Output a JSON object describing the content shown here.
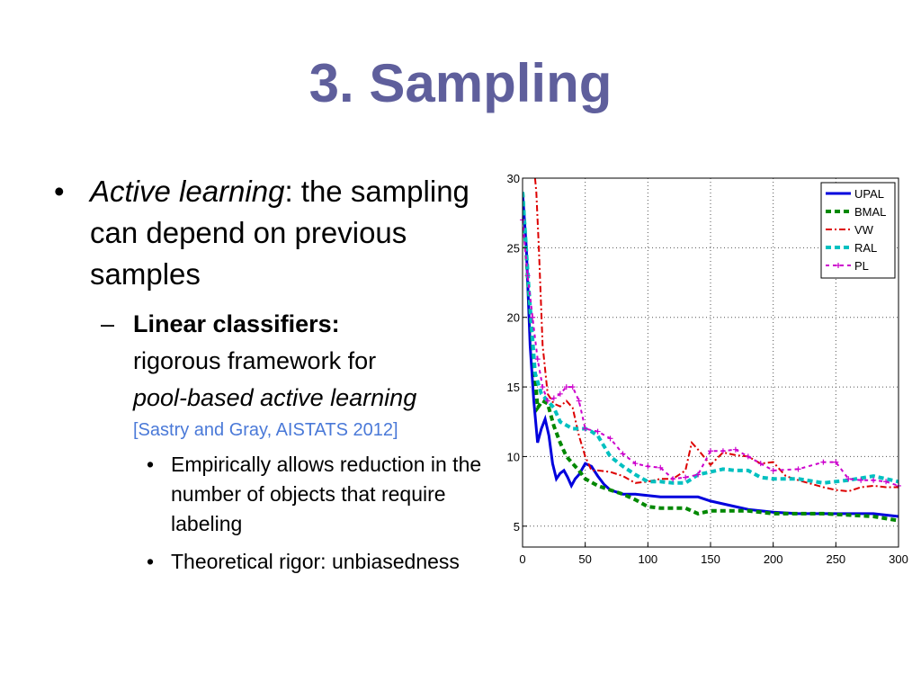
{
  "slide": {
    "title": "3. Sampling",
    "bullet1": {
      "mark": "•",
      "italic": "Active learning",
      "rest": ": the sampling can depend on previous samples"
    },
    "bullet2": {
      "mark": "–",
      "bold": "Linear classifiers:",
      "text1": "rigorous framework for",
      "italic": "pool-based active learning",
      "citation": "[Sastry and Gray, AISTATS 2012]"
    },
    "bullet3a": {
      "mark": "•",
      "text": "Empirically allows reduction in the number of objects that require labeling"
    },
    "bullet3b": {
      "mark": "•",
      "text": "Theoretical rigor: unbiasedness"
    }
  },
  "chart_data": {
    "type": "line",
    "title": "",
    "xlabel": "",
    "ylabel": "",
    "xlim": [
      0,
      300
    ],
    "ylim": [
      3.5,
      30
    ],
    "xticks": [
      0,
      50,
      100,
      150,
      200,
      250,
      300
    ],
    "yticks": [
      5,
      10,
      15,
      20,
      25,
      30
    ],
    "grid": true,
    "legend_position": "top-right",
    "series": [
      {
        "name": "UPAL",
        "color": "#0000dd",
        "style": "solid",
        "x": [
          0,
          3,
          6,
          9,
          12,
          15,
          18,
          21,
          24,
          27,
          30,
          33,
          36,
          39,
          42,
          45,
          50,
          55,
          60,
          65,
          70,
          80,
          90,
          100,
          110,
          120,
          130,
          140,
          150,
          160,
          170,
          180,
          190,
          200,
          220,
          240,
          260,
          280,
          300
        ],
        "y": [
          29,
          25,
          18,
          14,
          11,
          12,
          12.7,
          11.5,
          9.5,
          8.4,
          8.8,
          9,
          8.5,
          7.9,
          8.4,
          8.7,
          9.5,
          9.3,
          8.6,
          8,
          7.6,
          7.3,
          7.3,
          7.2,
          7.1,
          7.1,
          7.1,
          7.1,
          6.8,
          6.6,
          6.4,
          6.2,
          6.1,
          6,
          5.9,
          5.9,
          5.9,
          5.9,
          5.7
        ]
      },
      {
        "name": "BMAL",
        "color": "#008800",
        "style": "dashed",
        "x": [
          0,
          4,
          8,
          12,
          16,
          20,
          25,
          30,
          35,
          40,
          45,
          50,
          60,
          70,
          80,
          90,
          100,
          110,
          120,
          130,
          140,
          150,
          160,
          170,
          180,
          190,
          200,
          220,
          240,
          260,
          280,
          300
        ],
        "y": [
          29,
          23,
          18,
          13.5,
          14,
          13.8,
          12.2,
          11,
          10,
          9.5,
          9,
          8.4,
          7.9,
          7.6,
          7.3,
          6.9,
          6.4,
          6.3,
          6.3,
          6.3,
          5.9,
          6.1,
          6.1,
          6.1,
          6.1,
          6,
          5.9,
          5.9,
          5.9,
          5.8,
          5.7,
          5.4
        ]
      },
      {
        "name": "VW",
        "color": "#dd0000",
        "style": "dashdot",
        "x": [
          10,
          11,
          13,
          16,
          20,
          25,
          30,
          35,
          40,
          45,
          50,
          55,
          60,
          70,
          80,
          90,
          100,
          110,
          120,
          130,
          135,
          140,
          150,
          160,
          170,
          180,
          190,
          200,
          210,
          220,
          240,
          250,
          260,
          270,
          280,
          290,
          300
        ],
        "y": [
          30,
          29,
          25,
          18,
          14.5,
          13.8,
          13.6,
          14,
          13.5,
          11.5,
          10,
          9,
          9,
          8.9,
          8.6,
          8.1,
          8.2,
          8.4,
          8.4,
          9,
          11,
          10.5,
          9.4,
          10.3,
          10.1,
          10,
          9.5,
          9.6,
          8.6,
          8.3,
          7.8,
          7.6,
          7.5,
          7.8,
          7.9,
          7.8,
          7.8
        ]
      },
      {
        "name": "RAL",
        "color": "#00c0c0",
        "style": "dashed",
        "x": [
          0,
          5,
          10,
          15,
          20,
          25,
          30,
          40,
          50,
          55,
          60,
          70,
          80,
          90,
          100,
          110,
          120,
          130,
          140,
          150,
          160,
          170,
          180,
          190,
          200,
          220,
          240,
          260,
          280,
          300
        ],
        "y": [
          29,
          22,
          16,
          14.5,
          14,
          13.5,
          12.5,
          12,
          12,
          11.8,
          11.5,
          10,
          9.3,
          8.7,
          8.2,
          8.2,
          8.1,
          8.1,
          8.7,
          8.9,
          9.1,
          9,
          9,
          8.5,
          8.4,
          8.4,
          8.1,
          8.3,
          8.6,
          8.2
        ]
      },
      {
        "name": "PL",
        "color": "#cc00cc",
        "style": "markers-plus",
        "x": [
          0,
          4,
          8,
          12,
          16,
          20,
          25,
          30,
          35,
          40,
          45,
          50,
          60,
          70,
          80,
          90,
          100,
          110,
          120,
          130,
          140,
          150,
          160,
          170,
          180,
          190,
          200,
          220,
          240,
          250,
          260,
          270,
          280,
          290,
          300
        ],
        "y": [
          27,
          23,
          20,
          17,
          15,
          14,
          14.2,
          14.5,
          15,
          15,
          14,
          12,
          11.8,
          11.3,
          10.2,
          9.5,
          9.3,
          9.2,
          8.4,
          8.5,
          8.7,
          10.4,
          10.4,
          10.5,
          10,
          9.5,
          9,
          9.1,
          9.6,
          9.6,
          8.4,
          8.3,
          8.3,
          8.2,
          7.9
        ]
      }
    ]
  }
}
